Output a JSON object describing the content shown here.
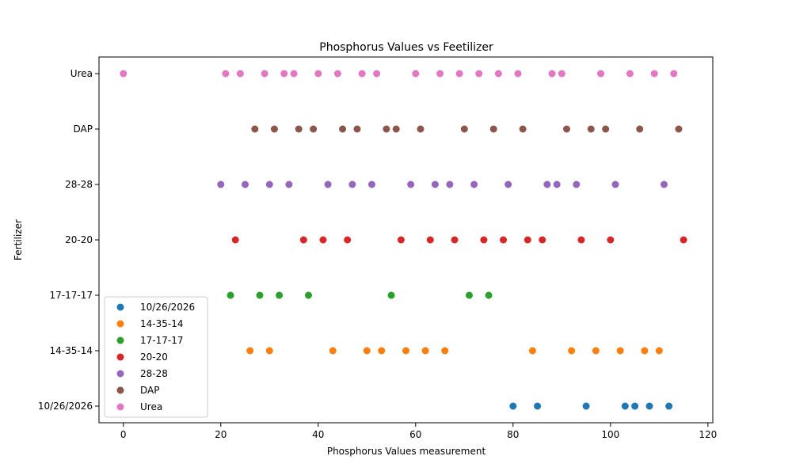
{
  "chart_data": {
    "type": "scatter",
    "title": "Phosphorus Values vs Feetilizer",
    "xlabel": "Phosphorus Values measurement",
    "ylabel": "Fertilizer",
    "xlim": [
      -5,
      121
    ],
    "xticks": [
      0,
      20,
      40,
      60,
      80,
      100,
      120
    ],
    "categories": [
      "10/26/2026",
      "14-35-14",
      "17-17-17",
      "20-20",
      "28-28",
      "DAP",
      "Urea"
    ],
    "grid": false,
    "legend_position": "lower-left",
    "series": [
      {
        "name": "10/26/2026",
        "color": "#1f77b4",
        "category": "10/26/2026",
        "x": [
          80,
          85,
          95,
          103,
          105,
          108,
          112
        ]
      },
      {
        "name": "14-35-14",
        "color": "#ff7f0e",
        "category": "14-35-14",
        "x": [
          26,
          30,
          43,
          50,
          53,
          58,
          62,
          66,
          84,
          92,
          97,
          102,
          107,
          110
        ]
      },
      {
        "name": "17-17-17",
        "color": "#2ca02c",
        "category": "17-17-17",
        "x": [
          22,
          28,
          32,
          38,
          55,
          71,
          75
        ]
      },
      {
        "name": "20-20",
        "color": "#d62728",
        "category": "20-20",
        "x": [
          23,
          37,
          41,
          46,
          57,
          63,
          68,
          74,
          78,
          83,
          86,
          94,
          100,
          115
        ]
      },
      {
        "name": "28-28",
        "color": "#9467bd",
        "category": "28-28",
        "x": [
          20,
          25,
          30,
          34,
          42,
          47,
          51,
          59,
          64,
          67,
          72,
          79,
          87,
          89,
          93,
          101,
          111
        ]
      },
      {
        "name": "DAP",
        "color": "#8c564b",
        "category": "DAP",
        "x": [
          27,
          31,
          36,
          39,
          45,
          48,
          54,
          56,
          61,
          70,
          76,
          82,
          91,
          96,
          99,
          106,
          114
        ]
      },
      {
        "name": "Urea",
        "color": "#e377c2",
        "category": "Urea",
        "x": [
          0,
          21,
          24,
          29,
          33,
          35,
          40,
          44,
          49,
          52,
          60,
          65,
          69,
          73,
          77,
          81,
          88,
          90,
          98,
          104,
          109,
          113
        ]
      }
    ]
  }
}
